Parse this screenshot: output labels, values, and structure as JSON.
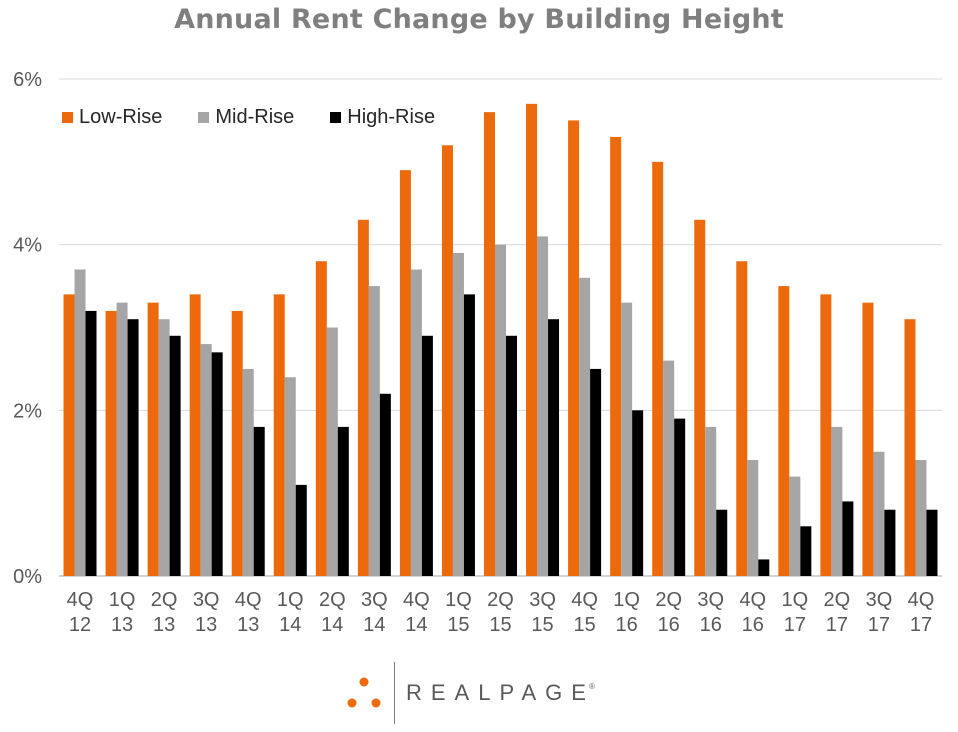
{
  "chart_data": {
    "type": "bar",
    "title": "Annual Rent Change by Building Height",
    "categories": [
      "4Q 12",
      "1Q 13",
      "2Q 13",
      "3Q 13",
      "4Q 13",
      "1Q 14",
      "2Q 14",
      "3Q 14",
      "4Q 14",
      "1Q 15",
      "2Q 15",
      "3Q 15",
      "4Q 15",
      "1Q 16",
      "2Q 16",
      "3Q 16",
      "4Q 16",
      "1Q 17",
      "2Q 17",
      "3Q 17",
      "4Q 17"
    ],
    "series": [
      {
        "name": "Low-Rise",
        "color": "#ec6a0c",
        "values": [
          3.4,
          3.2,
          3.3,
          3.4,
          3.2,
          3.4,
          3.8,
          4.3,
          4.9,
          5.2,
          5.6,
          5.7,
          5.5,
          5.3,
          5.0,
          4.3,
          3.8,
          3.5,
          3.4,
          3.3,
          3.1
        ]
      },
      {
        "name": "Mid-Rise",
        "color": "#a5a5a5",
        "values": [
          3.7,
          3.3,
          3.1,
          2.8,
          2.5,
          2.4,
          3.0,
          3.5,
          3.7,
          3.9,
          4.0,
          4.1,
          3.6,
          3.3,
          2.6,
          1.8,
          1.4,
          1.2,
          1.8,
          1.5,
          1.4
        ]
      },
      {
        "name": "High-Rise",
        "color": "#000000",
        "values": [
          3.2,
          3.1,
          2.9,
          2.7,
          1.8,
          1.1,
          1.8,
          2.2,
          2.9,
          3.4,
          2.9,
          3.1,
          2.5,
          2.0,
          1.9,
          0.8,
          0.2,
          0.6,
          0.9,
          0.8,
          0.8
        ]
      }
    ],
    "yticks": [
      "0%",
      "2%",
      "4%",
      "6%"
    ],
    "ylim": [
      0,
      6
    ],
    "grid": true,
    "legend": "top-left"
  },
  "brand": {
    "name": "REALPAGE",
    "mark": "®",
    "dot_color": "#ec6a0c"
  }
}
